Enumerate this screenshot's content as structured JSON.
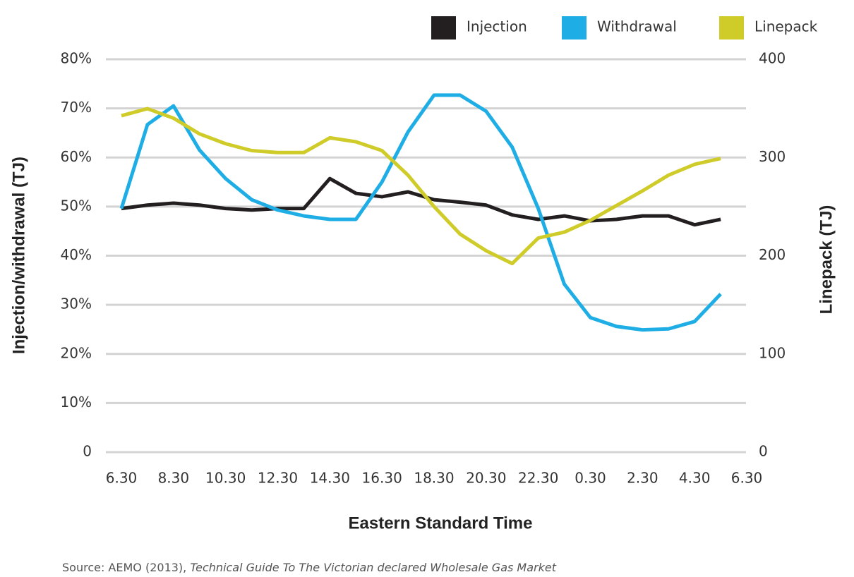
{
  "chart_data": {
    "type": "line",
    "x_label": "Eastern Standard Time",
    "y_label": "Injection/withdrawal (TJ)",
    "y2_label": "Linepack (TJ)",
    "source": "Source: AEMO (2013), ",
    "source_title": "Technical Guide To The Victorian declared Wholesale Gas Market",
    "x": [
      0,
      1,
      2,
      3,
      4,
      5,
      6,
      7,
      8,
      9,
      10,
      11,
      12,
      13,
      14,
      15,
      16,
      17,
      18,
      19,
      20,
      21,
      22,
      23
    ],
    "xlim": [
      0,
      24
    ],
    "xticks": [
      {
        "value": 0,
        "label": "6.30"
      },
      {
        "value": 2,
        "label": "8.30"
      },
      {
        "value": 4,
        "label": "10.30"
      },
      {
        "value": 6,
        "label": "12.30"
      },
      {
        "value": 8,
        "label": "14.30"
      },
      {
        "value": 10,
        "label": "16.30"
      },
      {
        "value": 12,
        "label": "18.30"
      },
      {
        "value": 14,
        "label": "20.30"
      },
      {
        "value": 16,
        "label": "22.30"
      },
      {
        "value": 18,
        "label": "0.30"
      },
      {
        "value": 20,
        "label": "2.30"
      },
      {
        "value": 22,
        "label": "4.30"
      },
      {
        "value": 24,
        "label": "6.30"
      }
    ],
    "ylim": [
      0,
      80
    ],
    "yticks": [
      0,
      {
        "value": 10,
        "label": "10%"
      },
      {
        "value": 20,
        "label": "20%"
      },
      {
        "value": 30,
        "label": "30%"
      },
      {
        "value": 40,
        "label": "40%"
      },
      {
        "value": 50,
        "label": "50%"
      },
      {
        "value": 60,
        "label": "60%"
      },
      {
        "value": 70,
        "label": "70%"
      },
      {
        "value": 80,
        "label": "80%"
      }
    ],
    "y2lim": [
      0,
      400
    ],
    "y2ticks": [
      0,
      100,
      200,
      300,
      400
    ],
    "grid": true,
    "legend": "top-right",
    "series": [
      {
        "name": "Injection",
        "color": "#231f20",
        "values": [
          49.6,
          50.3,
          50.7,
          50.3,
          49.6,
          49.3,
          49.6,
          49.6,
          55.7,
          52.7,
          52.0,
          53.0,
          51.4,
          50.9,
          50.3,
          48.3,
          47.4,
          48.1,
          47.1,
          47.4,
          48.1,
          48.1,
          46.3,
          47.4
        ]
      },
      {
        "name": "Withdrawal",
        "color": "#1eaee5",
        "values": [
          49.6,
          66.7,
          70.5,
          61.5,
          55.7,
          51.4,
          49.3,
          48.1,
          47.4,
          47.4,
          55.0,
          65.2,
          72.7,
          72.7,
          69.4,
          62.1,
          49.6,
          34.2,
          27.4,
          25.6,
          24.9,
          25.1,
          26.6,
          32.2
        ]
      },
      {
        "name": "Linepack",
        "color": "#cfcc2a",
        "axis": "y2",
        "values": [
          342.5,
          349.7,
          340,
          324,
          314,
          307,
          305,
          305,
          320,
          316,
          307,
          282,
          250,
          222,
          205,
          192,
          218,
          224,
          236,
          251,
          266,
          282,
          293,
          299
        ]
      }
    ]
  }
}
